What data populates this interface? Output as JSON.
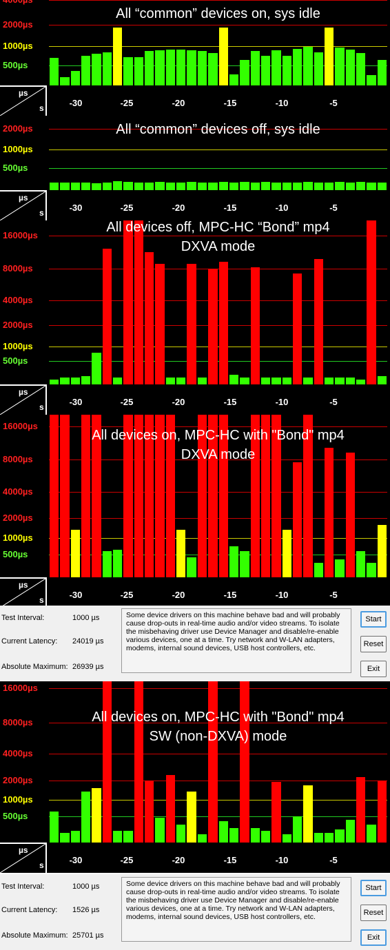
{
  "panels": [
    {
      "caption": [
        "All “common” devices on, sys idle"
      ],
      "labels": [
        {
          "text": "4000µs",
          "color": "red",
          "y": 0.0
        },
        {
          "text": "2000µs",
          "color": "red",
          "y": 0.29
        },
        {
          "text": "1000µs",
          "color": "yellow",
          "y": 0.54
        },
        {
          "text": "500µs",
          "color": "green",
          "y": 0.77
        }
      ],
      "bars": [
        [
          "g",
          0.32
        ],
        [
          "g",
          0.1
        ],
        [
          "g",
          0.17
        ],
        [
          "g",
          0.35
        ],
        [
          "g",
          0.37
        ],
        [
          "g",
          0.39
        ],
        [
          "y",
          0.68
        ],
        [
          "g",
          0.33
        ],
        [
          "g",
          0.33
        ],
        [
          "g",
          0.4
        ],
        [
          "g",
          0.41
        ],
        [
          "g",
          0.42
        ],
        [
          "g",
          0.42
        ],
        [
          "g",
          0.41
        ],
        [
          "g",
          0.4
        ],
        [
          "g",
          0.38
        ],
        [
          "y",
          0.68
        ],
        [
          "g",
          0.13
        ],
        [
          "g",
          0.3
        ],
        [
          "g",
          0.4
        ],
        [
          "g",
          0.35
        ],
        [
          "g",
          0.41
        ],
        [
          "g",
          0.35
        ],
        [
          "g",
          0.43
        ],
        [
          "g",
          0.45
        ],
        [
          "g",
          0.39
        ],
        [
          "y",
          0.68
        ],
        [
          "g",
          0.44
        ],
        [
          "g",
          0.42
        ],
        [
          "g",
          0.38
        ],
        [
          "g",
          0.12
        ],
        [
          "g",
          0.3
        ]
      ]
    },
    {
      "caption": [
        "All “common” devices off, sys idle"
      ],
      "labels": [
        {
          "text": "2000µs",
          "color": "red",
          "y": 0.18
        },
        {
          "text": "1000µs",
          "color": "yellow",
          "y": 0.45
        },
        {
          "text": "500µs",
          "color": "green",
          "y": 0.7
        }
      ],
      "bars": [
        [
          "g",
          0.1
        ],
        [
          "g",
          0.1
        ],
        [
          "g",
          0.1
        ],
        [
          "g",
          0.1
        ],
        [
          "g",
          0.09
        ],
        [
          "g",
          0.1
        ],
        [
          "g",
          0.12
        ],
        [
          "g",
          0.11
        ],
        [
          "g",
          0.1
        ],
        [
          "g",
          0.1
        ],
        [
          "g",
          0.11
        ],
        [
          "g",
          0.1
        ],
        [
          "g",
          0.1
        ],
        [
          "g",
          0.11
        ],
        [
          "g",
          0.1
        ],
        [
          "g",
          0.1
        ],
        [
          "g",
          0.11
        ],
        [
          "g",
          0.1
        ],
        [
          "g",
          0.11
        ],
        [
          "g",
          0.1
        ],
        [
          "g",
          0.11
        ],
        [
          "g",
          0.1
        ],
        [
          "g",
          0.1
        ],
        [
          "g",
          0.1
        ],
        [
          "g",
          0.11
        ],
        [
          "g",
          0.1
        ],
        [
          "g",
          0.1
        ],
        [
          "g",
          0.11
        ],
        [
          "g",
          0.1
        ],
        [
          "g",
          0.11
        ],
        [
          "g",
          0.1
        ],
        [
          "g",
          0.1
        ]
      ]
    },
    {
      "caption": [
        "All devices off, MPC-HC “Bond” mp4",
        "DXVA mode"
      ],
      "labels": [
        {
          "text": "16000µs",
          "color": "red",
          "y": 0.1
        },
        {
          "text": "8000µs",
          "color": "red",
          "y": 0.3
        },
        {
          "text": "4000µs",
          "color": "red",
          "y": 0.49
        },
        {
          "text": "2000µs",
          "color": "red",
          "y": 0.64
        },
        {
          "text": "1000µs",
          "color": "yellow",
          "y": 0.77
        },
        {
          "text": "500µs",
          "color": "green",
          "y": 0.86
        }
      ],
      "bars": [
        [
          "g",
          0.03
        ],
        [
          "g",
          0.04
        ],
        [
          "g",
          0.04
        ],
        [
          "g",
          0.05
        ],
        [
          "g",
          0.19
        ],
        [
          "r",
          0.82
        ],
        [
          "g",
          0.04
        ],
        [
          "r",
          1.0
        ],
        [
          "r",
          1.0
        ],
        [
          "r",
          0.8
        ],
        [
          "r",
          0.73
        ],
        [
          "g",
          0.04
        ],
        [
          "g",
          0.04
        ],
        [
          "r",
          0.73
        ],
        [
          "g",
          0.04
        ],
        [
          "r",
          0.7
        ],
        [
          "r",
          0.74
        ],
        [
          "g",
          0.06
        ],
        [
          "g",
          0.04
        ],
        [
          "r",
          0.71
        ],
        [
          "g",
          0.04
        ],
        [
          "g",
          0.04
        ],
        [
          "g",
          0.04
        ],
        [
          "r",
          0.67
        ],
        [
          "g",
          0.04
        ],
        [
          "r",
          0.76
        ],
        [
          "g",
          0.04
        ],
        [
          "g",
          0.04
        ],
        [
          "g",
          0.04
        ],
        [
          "g",
          0.03
        ],
        [
          "r",
          1.0
        ],
        [
          "g",
          0.05
        ]
      ]
    },
    {
      "caption": [
        "All devices on, MPC-HC with \"Bond\" mp4",
        "DXVA mode"
      ],
      "labels": [
        {
          "text": "16000µs",
          "color": "red",
          "y": 0.08
        },
        {
          "text": "8000µs",
          "color": "red",
          "y": 0.28
        },
        {
          "text": "4000µs",
          "color": "red",
          "y": 0.48
        },
        {
          "text": "2000µs",
          "color": "red",
          "y": 0.64
        },
        {
          "text": "1000µs",
          "color": "yellow",
          "y": 0.76
        },
        {
          "text": "500µs",
          "color": "green",
          "y": 0.86
        }
      ],
      "bars": [
        [
          "r",
          1.0
        ],
        [
          "r",
          1.0
        ],
        [
          "y",
          0.29
        ],
        [
          "r",
          1.0
        ],
        [
          "r",
          1.0
        ],
        [
          "g",
          0.16
        ],
        [
          "g",
          0.17
        ],
        [
          "r",
          1.0
        ],
        [
          "r",
          1.0
        ],
        [
          "r",
          1.0
        ],
        [
          "r",
          1.0
        ],
        [
          "r",
          1.0
        ],
        [
          "y",
          0.29
        ],
        [
          "g",
          0.12
        ],
        [
          "r",
          1.0
        ],
        [
          "r",
          1.0
        ],
        [
          "r",
          1.0
        ],
        [
          "g",
          0.19
        ],
        [
          "g",
          0.16
        ],
        [
          "r",
          1.0
        ],
        [
          "r",
          1.0
        ],
        [
          "r",
          1.0
        ],
        [
          "y",
          0.29
        ],
        [
          "r",
          0.7
        ],
        [
          "r",
          1.0
        ],
        [
          "g",
          0.09
        ],
        [
          "r",
          0.79
        ],
        [
          "g",
          0.11
        ],
        [
          "r",
          0.76
        ],
        [
          "g",
          0.16
        ],
        [
          "g",
          0.09
        ],
        [
          "y",
          0.32
        ]
      ]
    },
    {
      "caption": [
        "All devices on, MPC-HC with \"Bond\" mp4",
        "SW (non-DXVA) mode"
      ],
      "labels": [
        {
          "text": "16000µs",
          "color": "red",
          "y": 0.06
        },
        {
          "text": "8000µs",
          "color": "red",
          "y": 0.27
        },
        {
          "text": "4000µs",
          "color": "red",
          "y": 0.46
        },
        {
          "text": "2000µs",
          "color": "red",
          "y": 0.62
        },
        {
          "text": "1000µs",
          "color": "yellow",
          "y": 0.74
        },
        {
          "text": "500µs",
          "color": "green",
          "y": 0.84
        }
      ],
      "bars": [
        [
          "g",
          0.19
        ],
        [
          "g",
          0.06
        ],
        [
          "g",
          0.07
        ],
        [
          "g",
          0.31
        ],
        [
          "y",
          0.33
        ],
        [
          "r",
          1.0
        ],
        [
          "g",
          0.07
        ],
        [
          "g",
          0.07
        ],
        [
          "r",
          1.0
        ],
        [
          "r",
          0.38
        ],
        [
          "g",
          0.15
        ],
        [
          "r",
          0.41
        ],
        [
          "g",
          0.11
        ],
        [
          "y",
          0.31
        ],
        [
          "g",
          0.05
        ],
        [
          "r",
          1.0
        ],
        [
          "g",
          0.13
        ],
        [
          "g",
          0.09
        ],
        [
          "r",
          1.0
        ],
        [
          "g",
          0.09
        ],
        [
          "g",
          0.07
        ],
        [
          "r",
          0.37
        ],
        [
          "g",
          0.05
        ],
        [
          "g",
          0.16
        ],
        [
          "y",
          0.35
        ],
        [
          "g",
          0.06
        ],
        [
          "g",
          0.06
        ],
        [
          "g",
          0.08
        ],
        [
          "g",
          0.14
        ],
        [
          "r",
          0.4
        ],
        [
          "g",
          0.11
        ],
        [
          "r",
          0.38
        ]
      ]
    }
  ],
  "axis": {
    "unit_top": "µs",
    "unit_bottom": "s",
    "ticks": [
      "-30",
      "-25",
      "-20",
      "-15",
      "-10",
      "-5"
    ]
  },
  "infos": [
    {
      "test_interval_label": "Test Interval:",
      "test_interval": "1000 µs",
      "current_latency_label": "Current Latency:",
      "current_latency": "24019 µs",
      "absolute_max_label": "Absolute Maximum:",
      "absolute_max": "26939 µs",
      "message": "Some device drivers on this machine behave bad and will probably cause drop-outs in real-time audio and/or video streams. To isolate the misbehaving driver use Device Manager and disable/re-enable various devices, one at a time. Try network and W-LAN adapters, modems, internal sound devices, USB host controllers, etc.",
      "start": "Start",
      "reset": "Reset",
      "exit": "Exit"
    },
    {
      "test_interval_label": "Test Interval:",
      "test_interval": "1000 µs",
      "current_latency_label": "Current Latency:",
      "current_latency": "1526 µs",
      "absolute_max_label": "Absolute Maximum:",
      "absolute_max": "25701 µs",
      "message": "Some device drivers on this machine behave bad and will probably cause drop-outs in real-time audio and/or video streams. To isolate the misbehaving driver use Device Manager and disable/re-enable various devices, one at a time. Try network and W-LAN adapters, modems, internal sound devices, USB host controllers, etc.",
      "start": "Start",
      "reset": "Reset",
      "exit": "Exit"
    }
  ],
  "colors": {
    "r": "#ff0000",
    "y": "#ffff00",
    "g": "#33ff00"
  }
}
